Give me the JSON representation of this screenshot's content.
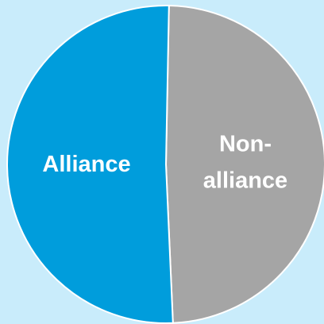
{
  "chart_data": {
    "type": "pie",
    "categories": [
      "Non-alliance",
      "Alliance"
    ],
    "values": [
      49,
      51
    ],
    "colors": [
      "#a5a5a5",
      "#009ddc"
    ]
  }
}
